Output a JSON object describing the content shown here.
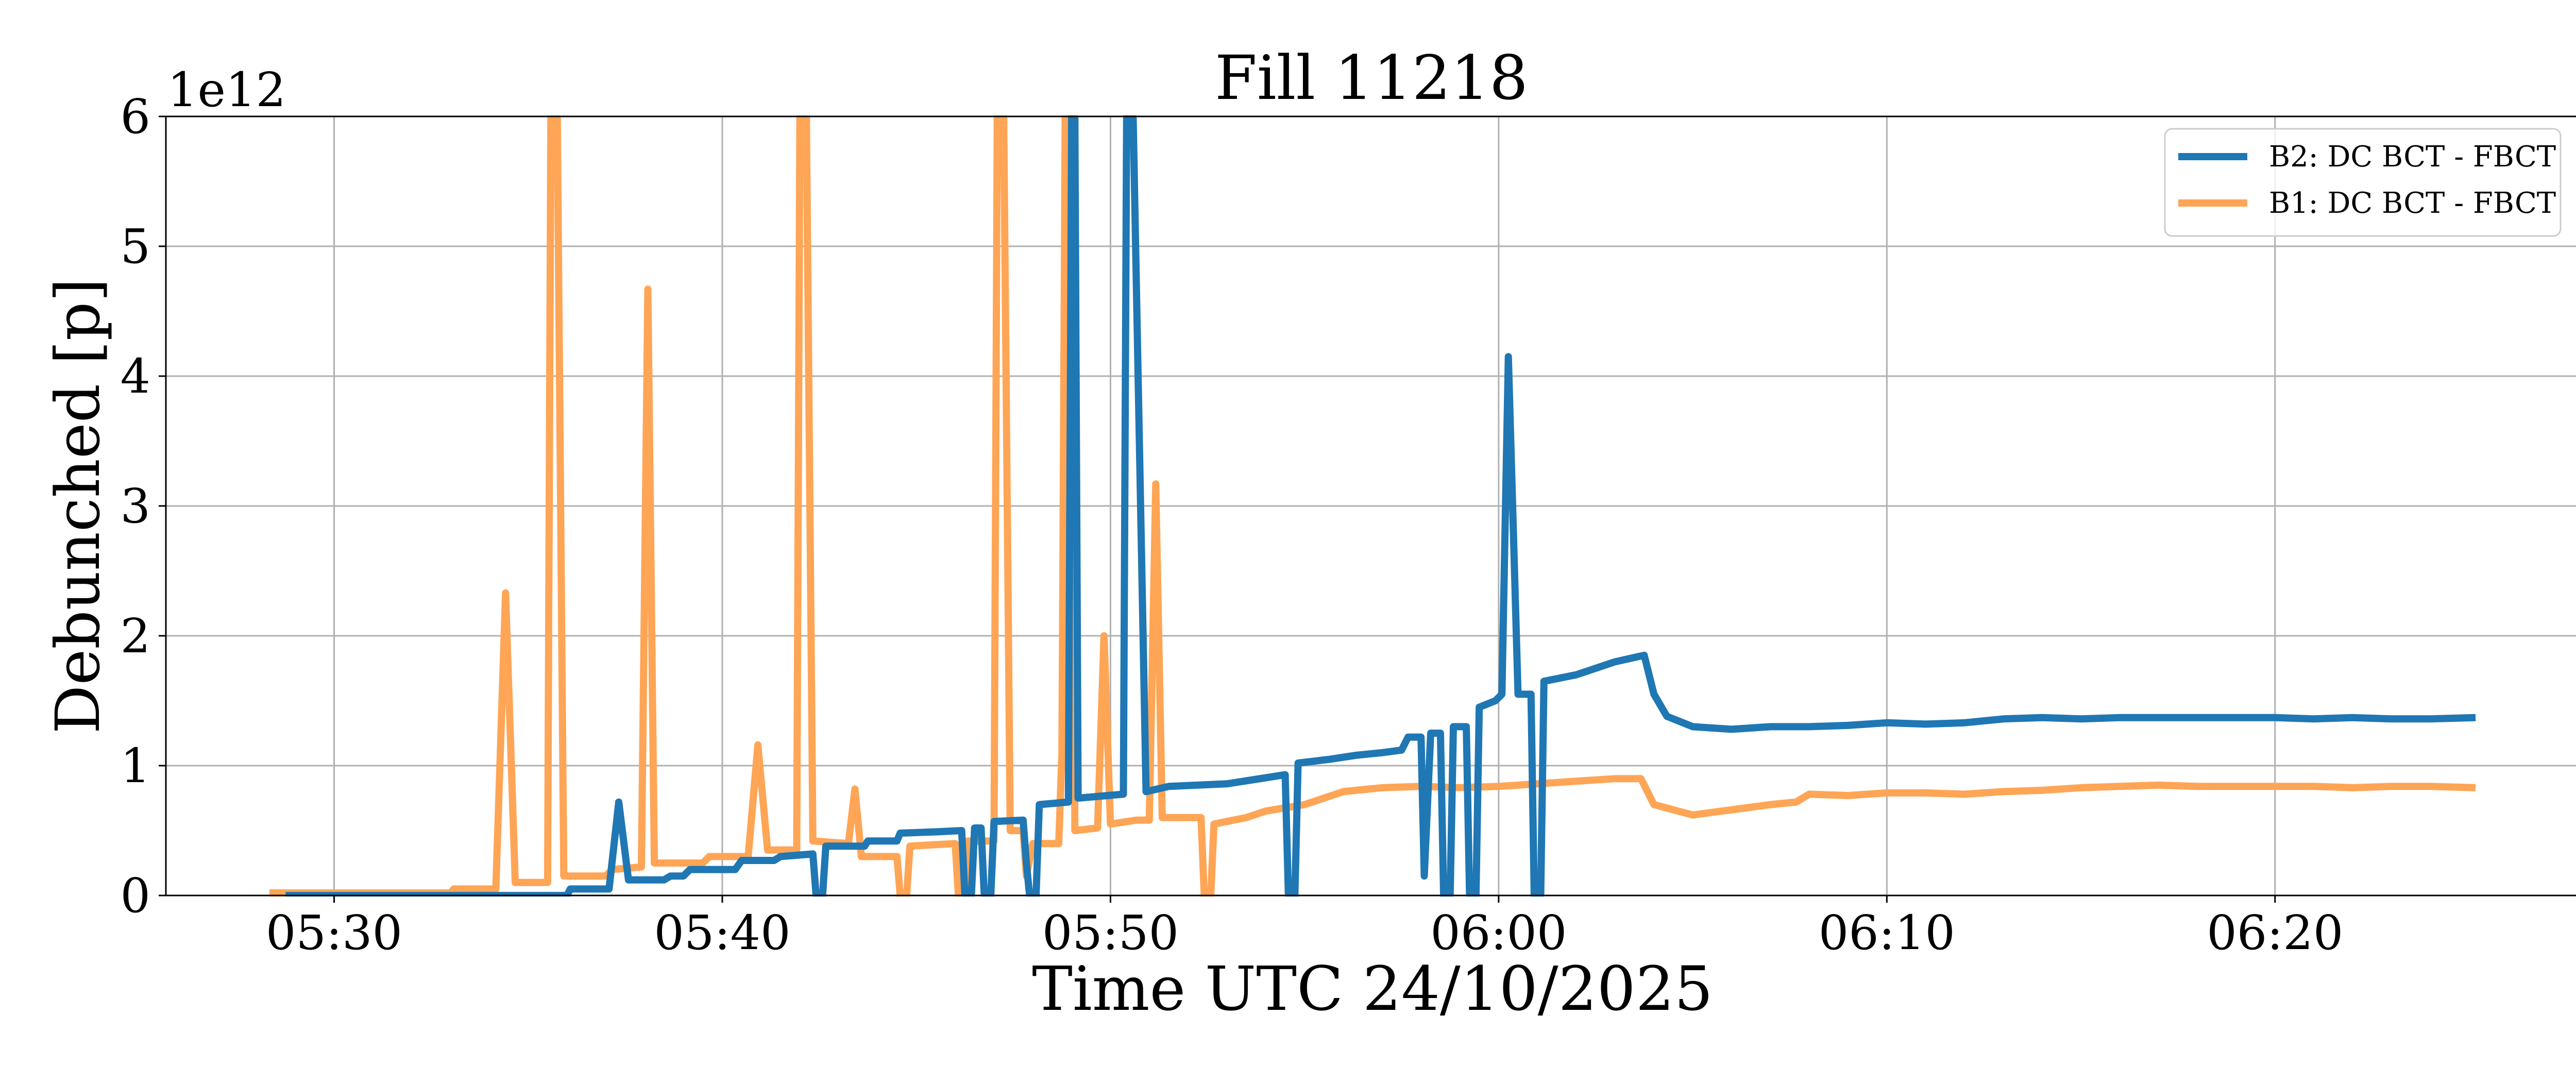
{
  "chart_data": {
    "type": "line",
    "title": "Fill 11218",
    "xlabel": "Time UTC 24/10/2025",
    "ylabel": "Debunched [p]",
    "y_offset_label": "1e12",
    "xlim": [
      "05:25:40",
      "06:27:50"
    ],
    "ylim": [
      0,
      6
    ],
    "x_ticks": [
      "05:30",
      "05:40",
      "05:50",
      "06:00",
      "06:10",
      "06:20"
    ],
    "y_ticks": [
      "0",
      "1",
      "2",
      "3",
      "4",
      "5",
      "6"
    ],
    "grid": true,
    "legend_position": "top-right",
    "series": [
      {
        "name": "B2: DC BCT - FBCT",
        "color": "#1f77b4",
        "points": [
          [
            "05:28:45",
            0.0
          ],
          [
            "05:33:00",
            0.0
          ],
          [
            "05:36:00",
            0.0
          ],
          [
            "05:36:05",
            0.05
          ],
          [
            "05:37:05",
            0.05
          ],
          [
            "05:37:20",
            0.72
          ],
          [
            "05:37:35",
            0.12
          ],
          [
            "05:38:30",
            0.12
          ],
          [
            "05:38:40",
            0.15
          ],
          [
            "05:39:00",
            0.15
          ],
          [
            "05:39:10",
            0.2
          ],
          [
            "05:40:20",
            0.2
          ],
          [
            "05:40:30",
            0.27
          ],
          [
            "05:41:20",
            0.27
          ],
          [
            "05:41:30",
            0.3
          ],
          [
            "05:42:20",
            0.32
          ],
          [
            "05:42:25",
            0.0
          ],
          [
            "05:42:35",
            0.0
          ],
          [
            "05:42:40",
            0.38
          ],
          [
            "05:43:40",
            0.38
          ],
          [
            "05:43:45",
            0.42
          ],
          [
            "05:44:30",
            0.42
          ],
          [
            "05:44:35",
            0.48
          ],
          [
            "05:45:30",
            0.49
          ],
          [
            "05:46:10",
            0.5
          ],
          [
            "05:46:15",
            0.0
          ],
          [
            "05:46:25",
            0.0
          ],
          [
            "05:46:30",
            0.52
          ],
          [
            "05:46:40",
            0.52
          ],
          [
            "05:46:45",
            0.0
          ],
          [
            "05:46:55",
            0.0
          ],
          [
            "05:47:00",
            0.57
          ],
          [
            "05:47:45",
            0.58
          ],
          [
            "05:47:50",
            0.25
          ],
          [
            "05:47:55",
            0.0
          ],
          [
            "05:48:05",
            0.0
          ],
          [
            "05:48:10",
            0.7
          ],
          [
            "05:48:55",
            0.72
          ],
          [
            "05:49:00",
            6.0
          ],
          [
            "05:49:05",
            6.0
          ],
          [
            "05:49:10",
            0.75
          ],
          [
            "05:50:20",
            0.78
          ],
          [
            "05:50:25",
            6.0
          ],
          [
            "05:50:35",
            6.0
          ],
          [
            "05:50:55",
            0.8
          ],
          [
            "05:51:30",
            0.84
          ],
          [
            "05:53:00",
            0.86
          ],
          [
            "05:54:30",
            0.93
          ],
          [
            "05:54:35",
            0.0
          ],
          [
            "05:54:45",
            0.0
          ],
          [
            "05:54:50",
            1.02
          ],
          [
            "05:55:40",
            1.05
          ],
          [
            "05:56:20",
            1.08
          ],
          [
            "05:57:00",
            1.1
          ],
          [
            "05:57:30",
            1.12
          ],
          [
            "05:57:40",
            1.22
          ],
          [
            "05:58:00",
            1.22
          ],
          [
            "05:58:05",
            0.15
          ],
          [
            "05:58:15",
            1.25
          ],
          [
            "05:58:30",
            1.25
          ],
          [
            "05:58:35",
            0.0
          ],
          [
            "05:58:45",
            0.0
          ],
          [
            "05:58:50",
            1.3
          ],
          [
            "05:59:10",
            1.3
          ],
          [
            "05:59:15",
            0.0
          ],
          [
            "05:59:25",
            0.0
          ],
          [
            "05:59:30",
            1.45
          ],
          [
            "05:59:55",
            1.5
          ],
          [
            "06:00:05",
            1.55
          ],
          [
            "06:00:15",
            4.15
          ],
          [
            "06:00:30",
            1.55
          ],
          [
            "06:00:50",
            1.55
          ],
          [
            "06:00:55",
            0.0
          ],
          [
            "06:01:05",
            0.0
          ],
          [
            "06:01:10",
            1.65
          ],
          [
            "06:02:00",
            1.7
          ],
          [
            "06:03:00",
            1.8
          ],
          [
            "06:03:45",
            1.85
          ],
          [
            "06:04:00",
            1.55
          ],
          [
            "06:04:20",
            1.38
          ],
          [
            "06:05:00",
            1.3
          ],
          [
            "06:06:00",
            1.28
          ],
          [
            "06:07:00",
            1.3
          ],
          [
            "06:08:00",
            1.3
          ],
          [
            "06:09:00",
            1.31
          ],
          [
            "06:10:00",
            1.33
          ],
          [
            "06:11:00",
            1.32
          ],
          [
            "06:12:00",
            1.33
          ],
          [
            "06:13:00",
            1.36
          ],
          [
            "06:14:00",
            1.37
          ],
          [
            "06:15:00",
            1.36
          ],
          [
            "06:16:00",
            1.37
          ],
          [
            "06:17:00",
            1.37
          ],
          [
            "06:18:00",
            1.37
          ],
          [
            "06:19:00",
            1.37
          ],
          [
            "06:20:00",
            1.37
          ],
          [
            "06:21:00",
            1.36
          ],
          [
            "06:22:00",
            1.37
          ],
          [
            "06:23:00",
            1.36
          ],
          [
            "06:24:00",
            1.36
          ],
          [
            "06:25:10",
            1.37
          ]
        ]
      },
      {
        "name": "B1: DC BCT - FBCT",
        "color": "#ffa556",
        "points": [
          [
            "05:28:20",
            0.02
          ],
          [
            "05:30:00",
            0.02
          ],
          [
            "05:33:00",
            0.02
          ],
          [
            "05:33:05",
            0.05
          ],
          [
            "05:34:10",
            0.05
          ],
          [
            "05:34:25",
            2.33
          ],
          [
            "05:34:40",
            0.1
          ],
          [
            "05:35:30",
            0.1
          ],
          [
            "05:35:35",
            6.0
          ],
          [
            "05:35:45",
            6.0
          ],
          [
            "05:35:55",
            0.15
          ],
          [
            "05:37:00",
            0.15
          ],
          [
            "05:37:10",
            0.2
          ],
          [
            "05:37:55",
            0.22
          ],
          [
            "05:38:05",
            4.67
          ],
          [
            "05:38:15",
            0.25
          ],
          [
            "05:39:30",
            0.25
          ],
          [
            "05:39:40",
            0.3
          ],
          [
            "05:40:40",
            0.3
          ],
          [
            "05:40:55",
            1.16
          ],
          [
            "05:41:10",
            0.35
          ],
          [
            "05:41:55",
            0.35
          ],
          [
            "05:42:00",
            6.0
          ],
          [
            "05:42:10",
            6.0
          ],
          [
            "05:42:20",
            0.42
          ],
          [
            "05:43:15",
            0.4
          ],
          [
            "05:43:25",
            0.82
          ],
          [
            "05:43:35",
            0.3
          ],
          [
            "05:44:30",
            0.3
          ],
          [
            "05:44:35",
            0.0
          ],
          [
            "05:44:45",
            0.0
          ],
          [
            "05:44:50",
            0.38
          ],
          [
            "05:46:00",
            0.4
          ],
          [
            "05:46:05",
            0.0
          ],
          [
            "05:46:15",
            0.0
          ],
          [
            "05:46:20",
            0.42
          ],
          [
            "05:47:00",
            0.42
          ],
          [
            "05:47:05",
            6.0
          ],
          [
            "05:47:15",
            6.0
          ],
          [
            "05:47:25",
            0.5
          ],
          [
            "05:47:45",
            0.5
          ],
          [
            "05:47:50",
            0.15
          ],
          [
            "05:48:00",
            0.4
          ],
          [
            "05:48:40",
            0.4
          ],
          [
            "05:48:45",
            1.1
          ],
          [
            "05:48:50",
            6.0
          ],
          [
            "05:49:00",
            6.0
          ],
          [
            "05:49:05",
            0.5
          ],
          [
            "05:49:40",
            0.52
          ],
          [
            "05:49:50",
            2.0
          ],
          [
            "05:50:00",
            0.55
          ],
          [
            "05:50:40",
            0.58
          ],
          [
            "05:51:00",
            0.58
          ],
          [
            "05:51:10",
            3.17
          ],
          [
            "05:51:20",
            0.6
          ],
          [
            "05:52:20",
            0.6
          ],
          [
            "05:52:25",
            0.0
          ],
          [
            "05:52:35",
            0.0
          ],
          [
            "05:52:40",
            0.55
          ],
          [
            "05:53:30",
            0.6
          ],
          [
            "05:54:00",
            0.65
          ],
          [
            "05:55:00",
            0.7
          ],
          [
            "05:56:00",
            0.8
          ],
          [
            "05:57:00",
            0.83
          ],
          [
            "05:58:00",
            0.84
          ],
          [
            "05:59:00",
            0.83
          ],
          [
            "06:00:00",
            0.84
          ],
          [
            "06:01:00",
            0.86
          ],
          [
            "06:02:00",
            0.88
          ],
          [
            "06:03:00",
            0.9
          ],
          [
            "06:03:40",
            0.9
          ],
          [
            "06:04:00",
            0.7
          ],
          [
            "06:05:00",
            0.62
          ],
          [
            "06:06:00",
            0.66
          ],
          [
            "06:07:00",
            0.7
          ],
          [
            "06:07:40",
            0.72
          ],
          [
            "06:08:00",
            0.78
          ],
          [
            "06:09:00",
            0.77
          ],
          [
            "06:10:00",
            0.79
          ],
          [
            "06:11:00",
            0.79
          ],
          [
            "06:12:00",
            0.78
          ],
          [
            "06:13:00",
            0.8
          ],
          [
            "06:14:00",
            0.81
          ],
          [
            "06:15:00",
            0.83
          ],
          [
            "06:16:00",
            0.84
          ],
          [
            "06:17:00",
            0.85
          ],
          [
            "06:18:00",
            0.84
          ],
          [
            "06:19:00",
            0.84
          ],
          [
            "06:20:00",
            0.84
          ],
          [
            "06:21:00",
            0.84
          ],
          [
            "06:22:00",
            0.83
          ],
          [
            "06:23:00",
            0.84
          ],
          [
            "06:24:00",
            0.84
          ],
          [
            "06:25:10",
            0.83
          ]
        ]
      }
    ]
  }
}
